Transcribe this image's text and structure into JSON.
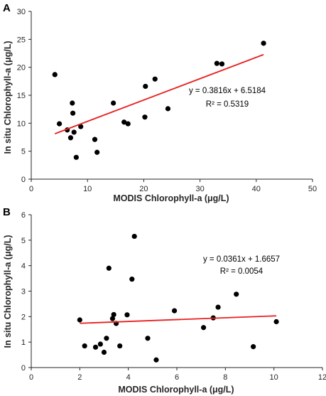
{
  "colors": {
    "point": "#000000",
    "trendline": "#e8201e",
    "axis": "#262626"
  },
  "chart_data": [
    {
      "type": "scatter",
      "panel_label": "A",
      "xlabel": "MODIS Chlorophyll-a (μg/L)",
      "ylabel": "In situ Chlorophyll-a (μg/L)",
      "xlim": [
        0,
        50
      ],
      "ylim": [
        0,
        30
      ],
      "xticks": [
        0,
        10,
        20,
        30,
        40,
        50
      ],
      "yticks": [
        0,
        5,
        10,
        15,
        20,
        25,
        30
      ],
      "grid": false,
      "points": [
        {
          "x": 4.2,
          "y": 18.7
        },
        {
          "x": 5.0,
          "y": 9.9
        },
        {
          "x": 6.4,
          "y": 8.8
        },
        {
          "x": 7.0,
          "y": 7.4
        },
        {
          "x": 7.3,
          "y": 13.6
        },
        {
          "x": 7.4,
          "y": 11.8
        },
        {
          "x": 7.6,
          "y": 8.4
        },
        {
          "x": 8.0,
          "y": 3.9
        },
        {
          "x": 8.8,
          "y": 9.4
        },
        {
          "x": 11.3,
          "y": 7.1
        },
        {
          "x": 11.7,
          "y": 4.8
        },
        {
          "x": 14.6,
          "y": 13.6
        },
        {
          "x": 16.5,
          "y": 10.2
        },
        {
          "x": 17.2,
          "y": 9.9
        },
        {
          "x": 20.2,
          "y": 11.1
        },
        {
          "x": 20.3,
          "y": 16.6
        },
        {
          "x": 22.0,
          "y": 17.9
        },
        {
          "x": 24.3,
          "y": 12.6
        },
        {
          "x": 33.0,
          "y": 20.7
        },
        {
          "x": 33.9,
          "y": 20.6
        },
        {
          "x": 41.3,
          "y": 24.3
        }
      ],
      "trendline": {
        "slope": 0.3816,
        "intercept": 6.5184,
        "x_range": [
          4.2,
          41.3
        ]
      },
      "equation": "y = 0.3816x + 6.5184",
      "r2": "R² = 0.5319"
    },
    {
      "type": "scatter",
      "panel_label": "B",
      "xlabel": "MODIS Chlorophyll-a (μg/L)",
      "ylabel": "In situ Chlorophyll-a (μg/L)",
      "xlim": [
        0,
        12
      ],
      "ylim": [
        0,
        6
      ],
      "xticks": [
        0,
        2,
        4,
        6,
        8,
        10,
        12
      ],
      "yticks": [
        0,
        1,
        2,
        3,
        4,
        5,
        6
      ],
      "grid": false,
      "points": [
        {
          "x": 2.0,
          "y": 1.87
        },
        {
          "x": 2.2,
          "y": 0.85
        },
        {
          "x": 2.65,
          "y": 0.8
        },
        {
          "x": 2.85,
          "y": 0.92
        },
        {
          "x": 3.0,
          "y": 0.6
        },
        {
          "x": 3.1,
          "y": 1.15
        },
        {
          "x": 3.2,
          "y": 3.9
        },
        {
          "x": 3.35,
          "y": 1.92
        },
        {
          "x": 3.4,
          "y": 2.08
        },
        {
          "x": 3.5,
          "y": 1.73
        },
        {
          "x": 3.65,
          "y": 0.85
        },
        {
          "x": 3.95,
          "y": 2.07
        },
        {
          "x": 4.15,
          "y": 3.47
        },
        {
          "x": 4.25,
          "y": 5.15
        },
        {
          "x": 4.8,
          "y": 1.15
        },
        {
          "x": 5.15,
          "y": 0.3
        },
        {
          "x": 5.9,
          "y": 2.23
        },
        {
          "x": 7.1,
          "y": 1.57
        },
        {
          "x": 7.5,
          "y": 1.95
        },
        {
          "x": 7.7,
          "y": 2.37
        },
        {
          "x": 8.45,
          "y": 2.88
        },
        {
          "x": 9.15,
          "y": 0.82
        },
        {
          "x": 10.1,
          "y": 1.8
        }
      ],
      "trendline": {
        "slope": 0.0361,
        "intercept": 1.6657,
        "x_range": [
          2.0,
          10.1
        ]
      },
      "equation": "y = 0.0361x + 1.6657",
      "r2": "R² = 0.0054"
    }
  ]
}
